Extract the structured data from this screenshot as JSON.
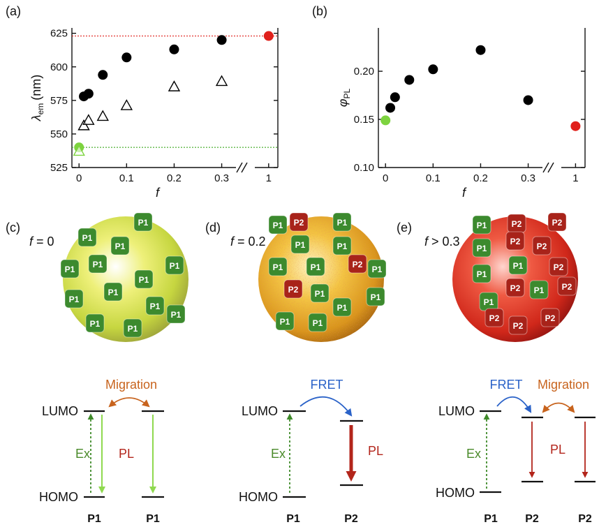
{
  "chart_data": [
    {
      "type": "scatter",
      "panel_label": "(a)",
      "xlabel": "f",
      "ylabel_symbol": "λ",
      "ylabel_subscript": "em",
      "ylabel_unit": "(nm)",
      "xlim": [
        -0.015,
        1.02
      ],
      "axis_break": [
        0.33,
        0.97
      ],
      "xticks": [
        0,
        0.1,
        0.2,
        0.3,
        1
      ],
      "ylim": [
        525,
        629
      ],
      "yticks": [
        525,
        550,
        575,
        600,
        625
      ],
      "reference_lines": [
        {
          "value": 623,
          "color": "#e0201b"
        },
        {
          "value": 540,
          "color": "#4caf32"
        }
      ],
      "series": [
        {
          "marker": "circle",
          "color": "#000000",
          "x": [
            0.01,
            0.02,
            0.05,
            0.1,
            0.2,
            0.3
          ],
          "values": [
            578,
            580,
            594,
            607,
            613,
            620
          ]
        },
        {
          "marker": "triangle",
          "color": "#000000",
          "x": [
            0.01,
            0.02,
            0.05,
            0.1,
            0.2,
            0.3
          ],
          "values": [
            556,
            560,
            563,
            571,
            585,
            589
          ]
        },
        {
          "marker": "circle",
          "color": "#7dd33f",
          "x": [
            0
          ],
          "values": [
            540
          ]
        },
        {
          "marker": "triangle",
          "color": "#7dd33f",
          "x": [
            0
          ],
          "values": [
            537
          ]
        },
        {
          "marker": "circle",
          "color": "#e0201b",
          "x": [
            1
          ],
          "values": [
            623
          ]
        }
      ]
    },
    {
      "type": "scatter",
      "panel_label": "(b)",
      "xlabel": "f",
      "ylabel_symbol": "φ",
      "ylabel_subscript": "PL",
      "xlim": [
        -0.015,
        1.02
      ],
      "axis_break": [
        0.33,
        0.97
      ],
      "xticks": [
        0,
        0.1,
        0.2,
        0.3,
        1
      ],
      "ylim": [
        0.1,
        0.245
      ],
      "yticks": [
        {
          "value": 0.1,
          "label": "0.10"
        },
        0.15,
        {
          "value": 0.2,
          "label": "0.20"
        }
      ],
      "series": [
        {
          "marker": "circle",
          "color": "#000000",
          "x": [
            0.01,
            0.02,
            0.05,
            0.1,
            0.2,
            0.3
          ],
          "values": [
            0.162,
            0.173,
            0.191,
            0.202,
            0.222,
            0.17
          ]
        },
        {
          "marker": "circle",
          "color": "#7dd33f",
          "x": [
            0
          ],
          "values": [
            0.149
          ]
        },
        {
          "marker": "circle",
          "color": "#e0201b",
          "x": [
            1
          ],
          "values": [
            0.143
          ]
        }
      ]
    }
  ],
  "diagrams": [
    {
      "panel_label": "(c)",
      "variable": "f",
      "condition": "= 0",
      "particles": [
        "P1",
        "P1",
        "P1",
        "P1",
        "P1",
        "P1",
        "P1",
        "P1",
        "P1",
        "P1",
        "P1",
        "P1",
        "P1"
      ],
      "transfers": [
        "Migration"
      ],
      "lumo": "LUMO",
      "homo": "HOMO",
      "excitation": "Ex",
      "emission": "PL",
      "molecules": [
        "P1",
        "P1"
      ]
    },
    {
      "panel_label": "(d)",
      "variable": "f",
      "condition": "= 0.2",
      "particles": [
        "P1",
        "P2",
        "P1",
        "P1",
        "P1",
        "P1",
        "P1",
        "P2",
        "P1",
        "P2",
        "P1",
        "P1",
        "P1",
        "P1",
        "P1"
      ],
      "transfers": [
        "FRET"
      ],
      "lumo": "LUMO",
      "homo": "HOMO",
      "excitation": "Ex",
      "emission": "PL",
      "molecules": [
        "P1",
        "P2"
      ]
    },
    {
      "panel_label": "(e)",
      "variable": "f",
      "condition": "> 0.3",
      "particles": [
        "P1",
        "P2",
        "P2",
        "P2",
        "P1",
        "P1",
        "P2",
        "P2",
        "P1",
        "P2",
        "P1",
        "P2",
        "P1",
        "P2",
        "P2",
        "P2"
      ],
      "transfers": [
        "FRET",
        "Migration"
      ],
      "lumo": "LUMO",
      "homo": "HOMO",
      "excitation": "Ex",
      "emission": "PL",
      "molecules": [
        "P1",
        "P2",
        "P2"
      ]
    }
  ]
}
